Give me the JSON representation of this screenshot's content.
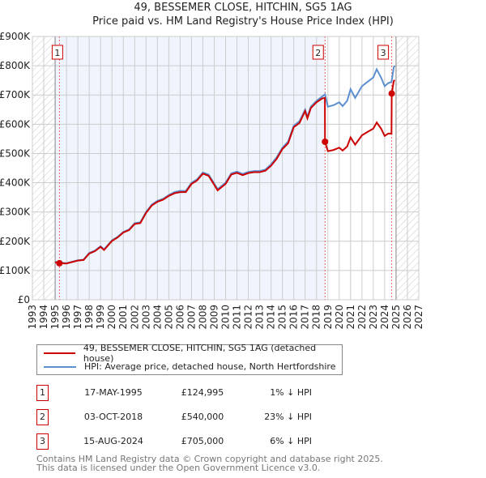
{
  "chart_data": {
    "type": "line",
    "title": "49, BESSEMER CLOSE, HITCHIN, SG5 1AG",
    "subtitle": "Price paid vs. HM Land Registry's House Price Index (HPI)",
    "xlim": [
      1993,
      2027
    ],
    "ylim": [
      0,
      900000
    ],
    "x_ticks": [
      "1993",
      "1994",
      "1995",
      "1996",
      "1997",
      "1998",
      "1999",
      "2000",
      "2001",
      "2002",
      "2003",
      "2004",
      "2005",
      "2006",
      "2007",
      "2008",
      "2009",
      "2010",
      "2011",
      "2012",
      "2013",
      "2014",
      "2015",
      "2016",
      "2017",
      "2018",
      "2019",
      "2020",
      "2021",
      "2022",
      "2023",
      "2024",
      "2025",
      "2026",
      "2027"
    ],
    "y_ticks": [
      {
        "v": 0,
        "label": "£0"
      },
      {
        "v": 100000,
        "label": "£100K"
      },
      {
        "v": 200000,
        "label": "£200K"
      },
      {
        "v": 300000,
        "label": "£300K"
      },
      {
        "v": 400000,
        "label": "£400K"
      },
      {
        "v": 500000,
        "label": "£500K"
      },
      {
        "v": 600000,
        "label": "£600K"
      },
      {
        "v": 700000,
        "label": "£700K"
      },
      {
        "v": 800000,
        "label": "£800K"
      },
      {
        "v": 900000,
        "label": "£900K"
      }
    ],
    "grid": true,
    "series": [
      {
        "name": "HPI: Average price, detached house, North Hertfordshire",
        "color": "#5b8fd0",
        "x": [
          1995.0,
          1995.4,
          1996,
          1997,
          1997.5,
          1998,
          1998.5,
          1999,
          1999.3,
          2000,
          2000.5,
          2001,
          2001.5,
          2002,
          2002.5,
          2003,
          2003.5,
          2004,
          2004.5,
          2005,
          2005.5,
          2006,
          2006.5,
          2007,
          2007.5,
          2008,
          2008.5,
          2009,
          2009.3,
          2010,
          2010.5,
          2011,
          2011.5,
          2012,
          2012.5,
          2013,
          2013.5,
          2014,
          2014.5,
          2015,
          2015.5,
          2016,
          2016.5,
          2017,
          2017.2,
          2017.5,
          2018,
          2018.5,
          2018.75,
          2019,
          2019.5,
          2020,
          2020.3,
          2020.7,
          2021,
          2021.4,
          2022,
          2022.5,
          2023,
          2023.3,
          2023.7,
          2024,
          2024.3,
          2024.6,
          2024.8,
          2024.9
        ],
        "y": [
          130000,
          127000,
          125000,
          135000,
          137000,
          160000,
          168000,
          183000,
          172000,
          203000,
          215000,
          232000,
          240000,
          262000,
          265000,
          300000,
          325000,
          338000,
          345000,
          358000,
          368000,
          372000,
          372000,
          400000,
          412000,
          435000,
          428000,
          397000,
          378000,
          400000,
          432000,
          438000,
          430000,
          437000,
          440000,
          440000,
          445000,
          463000,
          487000,
          520000,
          540000,
          595000,
          610000,
          650000,
          625000,
          660000,
          680000,
          695000,
          702000,
          660000,
          665000,
          675000,
          662000,
          680000,
          720000,
          690000,
          730000,
          745000,
          760000,
          788000,
          758000,
          730000,
          740000,
          745000,
          795000,
          800000
        ]
      },
      {
        "name": "49, BESSEMER CLOSE, HITCHIN, SG5 1AG (detached house)",
        "color": "#cc0000",
        "x": [
          1995.0,
          1995.38,
          1996,
          1997,
          1997.5,
          1998,
          1998.5,
          1999,
          1999.3,
          2000,
          2000.5,
          2001,
          2001.5,
          2002,
          2002.5,
          2003,
          2003.5,
          2004,
          2004.5,
          2005,
          2005.5,
          2006,
          2006.5,
          2007,
          2007.5,
          2008,
          2008.5,
          2009,
          2009.3,
          2010,
          2010.5,
          2011,
          2011.5,
          2012,
          2012.5,
          2013,
          2013.5,
          2014,
          2014.5,
          2015,
          2015.5,
          2016,
          2016.5,
          2017,
          2017.2,
          2017.5,
          2018,
          2018.5,
          2018.74,
          2018.75,
          2019,
          2019.5,
          2020,
          2020.3,
          2020.7,
          2021,
          2021.4,
          2022,
          2022.5,
          2023,
          2023.3,
          2023.7,
          2024,
          2024.3,
          2024.6,
          2024.62,
          2024.8,
          2024.9
        ],
        "y": [
          128000,
          124995,
          124000,
          134000,
          136000,
          158000,
          166000,
          181000,
          170000,
          201000,
          213000,
          230000,
          238000,
          259000,
          262000,
          297000,
          322000,
          335000,
          342000,
          355000,
          364000,
          368000,
          368000,
          396000,
          408000,
          431000,
          424000,
          393000,
          374000,
          396000,
          428000,
          434000,
          426000,
          433000,
          436000,
          436000,
          441000,
          458000,
          482000,
          515000,
          535000,
          590000,
          604000,
          645000,
          620000,
          655000,
          675000,
          688000,
          690000,
          540000,
          508000,
          512000,
          520000,
          510000,
          524000,
          555000,
          530000,
          562000,
          574000,
          585000,
          606000,
          584000,
          560000,
          568000,
          568000,
          705000,
          748000,
          750000
        ]
      }
    ],
    "sales": [
      {
        "label": "1",
        "x": 1995.38,
        "y": 124995
      },
      {
        "label": "2",
        "x": 2018.75,
        "y": 540000
      },
      {
        "label": "3",
        "x": 2024.62,
        "y": 705000
      }
    ],
    "hatched_before": 1995.0,
    "hatched_after": 2025.0
  },
  "legend": {
    "property": "49, BESSEMER CLOSE, HITCHIN, SG5 1AG (detached house)",
    "hpi": "HPI: Average price, detached house, North Hertfordshire"
  },
  "transactions": [
    {
      "n": "1",
      "date": "17-MAY-1995",
      "price": "£124,995",
      "hpi": "1% ↓ HPI"
    },
    {
      "n": "2",
      "date": "03-OCT-2018",
      "price": "£540,000",
      "hpi": "23% ↓ HPI"
    },
    {
      "n": "3",
      "date": "15-AUG-2024",
      "price": "£705,000",
      "hpi": "6% ↓ HPI"
    }
  ],
  "footer": {
    "line1": "Contains HM Land Registry data © Crown copyright and database right 2025.",
    "line2": "This data is licensed under the Open Government Licence v3.0."
  }
}
